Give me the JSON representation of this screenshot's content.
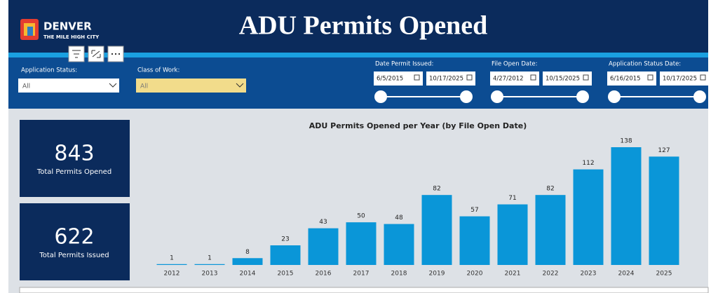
{
  "header": {
    "logo": {
      "name": "DENVER",
      "tagline": "THE MILE HIGH CITY"
    },
    "title": "ADU Permits Opened"
  },
  "filters": {
    "application_status": {
      "label": "Application Status:",
      "value": "All"
    },
    "class_of_work": {
      "label": "Class of Work:",
      "value": "All"
    },
    "date_permit_issued": {
      "label": "Date Permit Issued:",
      "start": "6/5/2015",
      "end": "10/17/2025"
    },
    "file_open_date": {
      "label": "File Open Date:",
      "start": "4/27/2012",
      "end": "10/15/2025"
    },
    "application_status_date": {
      "label": "Application Status Date:",
      "start": "6/16/2015",
      "end": "10/17/2025"
    }
  },
  "kpis": [
    {
      "value": "843",
      "label": "Total Permits Opened"
    },
    {
      "value": "622",
      "label": "Total Permits Issued"
    }
  ],
  "chart_data": {
    "type": "bar",
    "title": "ADU Permits Opened per Year (by File Open Date)",
    "categories": [
      "2012",
      "2013",
      "2014",
      "2015",
      "2016",
      "2017",
      "2018",
      "2019",
      "2020",
      "2021",
      "2022",
      "2023",
      "2024",
      "2025"
    ],
    "values": [
      1,
      1,
      8,
      23,
      43,
      50,
      48,
      82,
      57,
      71,
      82,
      112,
      138,
      127
    ],
    "color": "#0a96d8",
    "data_labels": true
  }
}
